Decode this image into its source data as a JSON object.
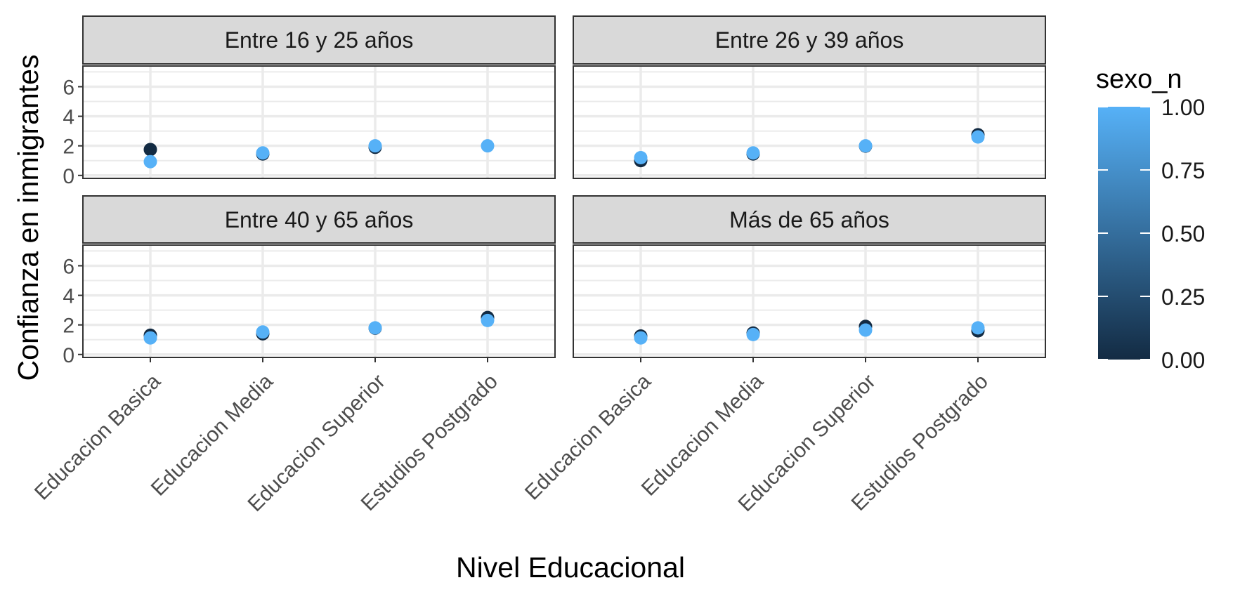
{
  "chart_data": {
    "type": "scatter",
    "xlabel": "Nivel Educacional",
    "ylabel": "Confianza en inmigrantes",
    "categories": [
      "Educacion Basica",
      "Educacion Media",
      "Educacion Superior",
      "Estudios Postgrado"
    ],
    "ylim": [
      -0.2,
      7.4
    ],
    "yticks": [
      0,
      2,
      4,
      6
    ],
    "grid": true,
    "legend": {
      "title": "sexo_n",
      "position": "right",
      "type": "continuous",
      "low_color": "#132B43",
      "high_color": "#56B1F7",
      "range": [
        0,
        1
      ],
      "ticks": [
        "0.00",
        "0.25",
        "0.50",
        "0.75",
        "1.00"
      ]
    },
    "panels": [
      {
        "label": "Entre 16 y 25 años",
        "points": [
          {
            "category": "Educacion Basica",
            "sexo_n": 0,
            "y": 1.75
          },
          {
            "category": "Educacion Basica",
            "sexo_n": 1,
            "y": 0.93
          },
          {
            "category": "Educacion Media",
            "sexo_n": 0,
            "y": 1.45
          },
          {
            "category": "Educacion Media",
            "sexo_n": 1,
            "y": 1.52
          },
          {
            "category": "Educacion Superior",
            "sexo_n": 0,
            "y": 1.9
          },
          {
            "category": "Educacion Superior",
            "sexo_n": 1,
            "y": 2.0
          },
          {
            "category": "Estudios Postgrado",
            "sexo_n": 1,
            "y": 2.0
          }
        ]
      },
      {
        "label": "Entre 26 y 39 años",
        "points": [
          {
            "category": "Educacion Basica",
            "sexo_n": 0,
            "y": 1.0
          },
          {
            "category": "Educacion Basica",
            "sexo_n": 1,
            "y": 1.2
          },
          {
            "category": "Educacion Media",
            "sexo_n": 0,
            "y": 1.45
          },
          {
            "category": "Educacion Media",
            "sexo_n": 1,
            "y": 1.52
          },
          {
            "category": "Educacion Superior",
            "sexo_n": 0,
            "y": 1.98
          },
          {
            "category": "Educacion Superior",
            "sexo_n": 1,
            "y": 2.0
          },
          {
            "category": "Estudios Postgrado",
            "sexo_n": 0,
            "y": 2.75
          },
          {
            "category": "Estudios Postgrado",
            "sexo_n": 1,
            "y": 2.6
          }
        ]
      },
      {
        "label": "Entre 40 y 65 años",
        "points": [
          {
            "category": "Educacion Basica",
            "sexo_n": 0,
            "y": 1.3
          },
          {
            "category": "Educacion Basica",
            "sexo_n": 1,
            "y": 1.12
          },
          {
            "category": "Educacion Media",
            "sexo_n": 0,
            "y": 1.4
          },
          {
            "category": "Educacion Media",
            "sexo_n": 1,
            "y": 1.52
          },
          {
            "category": "Educacion Superior",
            "sexo_n": 0,
            "y": 1.78
          },
          {
            "category": "Educacion Superior",
            "sexo_n": 1,
            "y": 1.8
          },
          {
            "category": "Estudios Postgrado",
            "sexo_n": 0,
            "y": 2.5
          },
          {
            "category": "Estudios Postgrado",
            "sexo_n": 1,
            "y": 2.3
          }
        ]
      },
      {
        "label": "Más de 65 años",
        "points": [
          {
            "category": "Educacion Basica",
            "sexo_n": 0,
            "y": 1.25
          },
          {
            "category": "Educacion Basica",
            "sexo_n": 1,
            "y": 1.12
          },
          {
            "category": "Educacion Media",
            "sexo_n": 0,
            "y": 1.45
          },
          {
            "category": "Educacion Media",
            "sexo_n": 1,
            "y": 1.35
          },
          {
            "category": "Educacion Superior",
            "sexo_n": 0,
            "y": 1.9
          },
          {
            "category": "Educacion Superior",
            "sexo_n": 1,
            "y": 1.65
          },
          {
            "category": "Estudios Postgrado",
            "sexo_n": 0,
            "y": 1.6
          },
          {
            "category": "Estudios Postgrado",
            "sexo_n": 1,
            "y": 1.8
          }
        ]
      }
    ]
  }
}
